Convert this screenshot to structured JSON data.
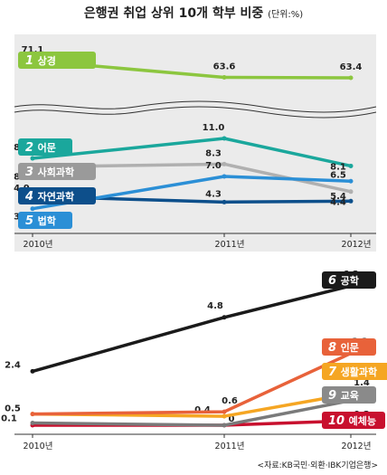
{
  "title": "은행권 취업 상위 10개 학부 비중",
  "unit": "(단위:%)",
  "source": "<자료:KB국민·외환·IBK기업은행>",
  "chart_data": [
    {
      "type": "line",
      "x": [
        "2010년",
        "2011년",
        "2012년"
      ],
      "series": [
        {
          "rank": "1",
          "name": "상경",
          "values": [
            71.1,
            63.6,
            63.4
          ],
          "labels": [
            "71.1",
            "63.6",
            "63.4"
          ],
          "color": "#8cc63f"
        },
        {
          "rank": "2",
          "name": "어문",
          "values": [
            8.9,
            11.0,
            8.1
          ],
          "labels": [
            "8.9",
            "11.0",
            "8.1"
          ],
          "color": "#1aa79c"
        },
        {
          "rank": "3",
          "name": "사회과학",
          "values": [
            8.0,
            8.3,
            5.4
          ],
          "labels": [
            "8.0",
            "8.3",
            "5.4"
          ],
          "color": "#b0b0b0"
        },
        {
          "rank": "4",
          "name": "자연과학",
          "values": [
            4.9,
            4.3,
            4.4
          ],
          "labels": [
            "4.9",
            "4.3",
            "4.4"
          ],
          "color": "#0d4f8b"
        },
        {
          "rank": "5",
          "name": "법학",
          "values": [
            3.6,
            7.0,
            6.5
          ],
          "labels": [
            "3.6",
            "7.0",
            "6.5"
          ],
          "color": "#2b8fd6"
        }
      ]
    },
    {
      "type": "line",
      "x": [
        "2010년",
        "2011년",
        "2012년"
      ],
      "series": [
        {
          "rank": "6",
          "name": "공학",
          "values": [
            2.4,
            4.8,
            6.2
          ],
          "labels": [
            "2.4",
            "4.8",
            "6.2"
          ],
          "color": "#1a1a1a"
        },
        {
          "rank": "7",
          "name": "생활과학",
          "values": [
            0.5,
            0.4,
            1.4
          ],
          "labels": [
            "0.5",
            "0.4",
            "1.4"
          ],
          "color": "#f5a623"
        },
        {
          "rank": "8",
          "name": "인문",
          "values": [
            0.5,
            0.6,
            3.2
          ],
          "labels": [
            "",
            "0.6",
            "3.2"
          ],
          "color": "#e8623a"
        },
        {
          "rank": "9",
          "name": "교육",
          "values": [
            0.1,
            0.0,
            1.1
          ],
          "labels": [
            "0.1",
            "0",
            "1.1"
          ],
          "color": "#7a7a7a"
        },
        {
          "rank": "10",
          "name": "예체능",
          "values": [
            0.0,
            0.0,
            0.2
          ],
          "labels": [
            "",
            "",
            "0.2"
          ],
          "color": "#c8102e"
        }
      ]
    }
  ]
}
